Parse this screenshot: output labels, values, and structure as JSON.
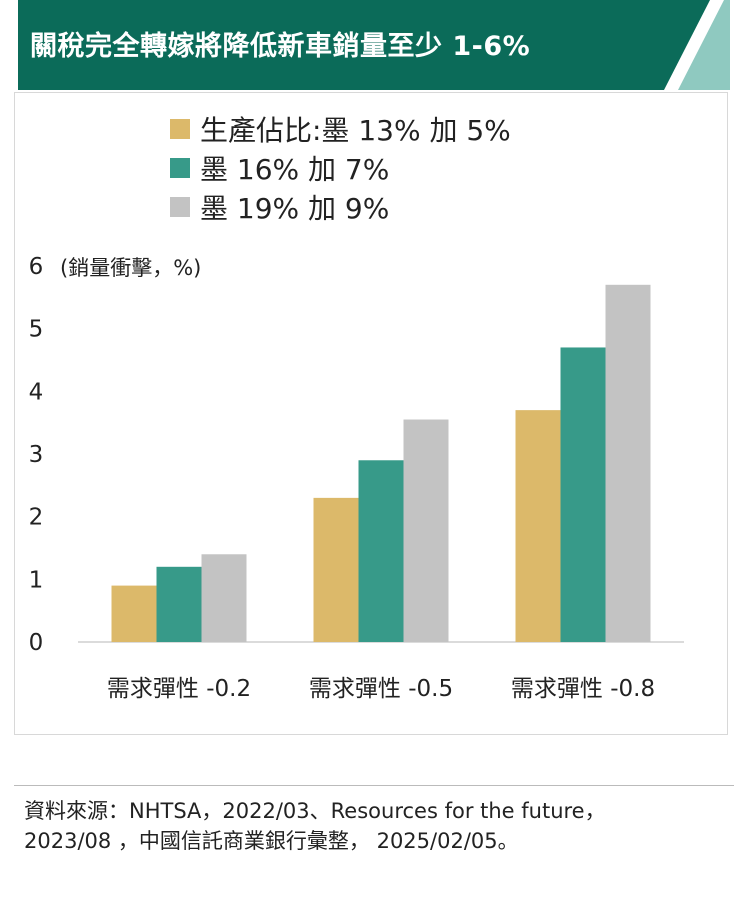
{
  "title": "關稅完全轉嫁將降低新車銷量至少 1-6%",
  "colors": {
    "header_bg": "#0b6b59",
    "header_accent": "#8fc9c0",
    "series_gold": "#dcb96a",
    "series_teal": "#379a89",
    "series_gray": "#c3c3c3"
  },
  "chart_data": {
    "type": "bar",
    "ylabel": "(銷量衝擊，%)",
    "ylim": [
      0,
      6
    ],
    "yticks": [
      "0",
      "1",
      "2",
      "3",
      "4",
      "5",
      "6"
    ],
    "categories": [
      "需求彈性 -0.2",
      "需求彈性 -0.5",
      "需求彈性 -0.8"
    ],
    "series": [
      {
        "name": "生產佔比:墨 13% 加 5%",
        "color": "#dcb96a",
        "values": [
          0.9,
          2.3,
          3.7
        ]
      },
      {
        "name": "墨 16% 加 7%",
        "color": "#379a89",
        "values": [
          1.2,
          2.9,
          4.7
        ]
      },
      {
        "name": "墨 19% 加 9%",
        "color": "#c3c3c3",
        "values": [
          1.4,
          3.55,
          5.7
        ]
      }
    ],
    "grid": false,
    "legend_position": "top"
  },
  "source": {
    "line1": "資料來源：NHTSA，2022/03、Resources for the future，",
    "line2": "2023/08 ，中國信託商業銀行彙整， 2025/02/05。"
  }
}
